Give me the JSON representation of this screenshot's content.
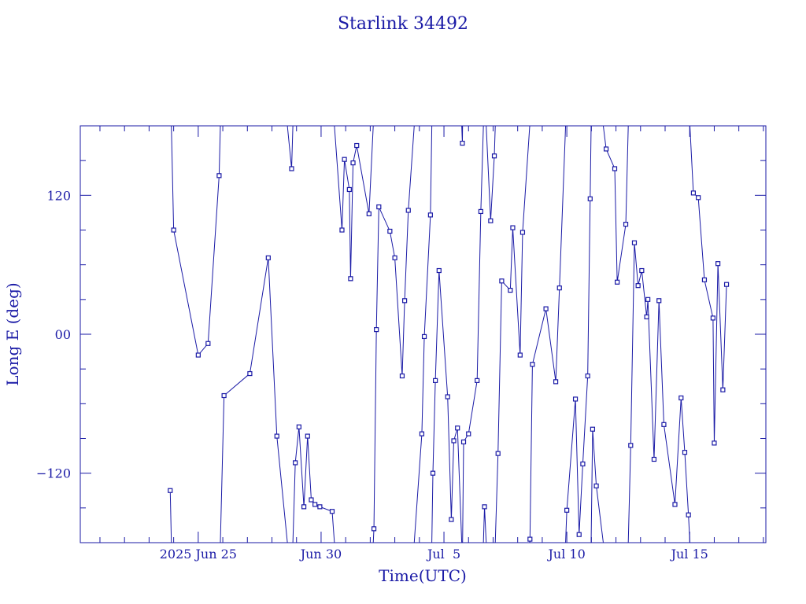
{
  "colors": {
    "ink": "#1a1aa6",
    "background": "#ffffff"
  },
  "chart_data": {
    "type": "scatter",
    "title": "Starlink 34492",
    "xlabel": "Time(UTC)",
    "ylabel": "Long E (deg)",
    "y_ticks": [
      {
        "value": 120,
        "label": "120"
      },
      {
        "value": 0,
        "label": "00"
      },
      {
        "value": -120,
        "label": "−120"
      }
    ],
    "ylim": [
      -180,
      180
    ],
    "x_ticks": [
      {
        "value": 25,
        "label": "2025 Jun 25"
      },
      {
        "value": 30,
        "label": "Jun 30"
      },
      {
        "value": 35,
        "label": "Jul  5"
      },
      {
        "value": 40,
        "label": "Jul 10"
      },
      {
        "value": 45,
        "label": "Jul 15"
      }
    ],
    "x_axis_origin": "days counted from 2025 Jun 0 (Jun 25 = 25, Jul 5 = 35)",
    "xlim": [
      20.2,
      48.1
    ],
    "series": [
      {
        "values": [
          [
            23.86,
            -135
          ],
          [
            24.0,
            90
          ],
          [
            25.0,
            -18
          ],
          [
            25.4,
            -8
          ],
          [
            25.85,
            137
          ],
          [
            26.05,
            -53
          ],
          [
            27.1,
            -34
          ],
          [
            27.85,
            66
          ],
          [
            28.2,
            -88
          ],
          [
            28.8,
            143
          ],
          [
            28.95,
            -111
          ],
          [
            29.1,
            -80
          ],
          [
            29.3,
            -149
          ],
          [
            29.45,
            -88
          ],
          [
            29.6,
            -143
          ],
          [
            29.75,
            -147
          ],
          [
            29.95,
            -149
          ],
          [
            30.45,
            -153
          ],
          [
            30.85,
            90
          ],
          [
            30.95,
            151
          ],
          [
            31.15,
            125
          ],
          [
            31.2,
            48
          ],
          [
            31.3,
            148
          ],
          [
            31.45,
            163
          ],
          [
            31.95,
            104
          ],
          [
            32.15,
            -168
          ],
          [
            32.25,
            4
          ],
          [
            32.35,
            110
          ],
          [
            32.8,
            89
          ],
          [
            33.0,
            66
          ],
          [
            33.3,
            -36
          ],
          [
            33.4,
            29
          ],
          [
            33.55,
            107
          ],
          [
            34.1,
            -86
          ],
          [
            34.2,
            -2
          ],
          [
            34.45,
            103
          ],
          [
            34.55,
            -120
          ],
          [
            34.65,
            -40
          ],
          [
            34.8,
            55
          ],
          [
            35.15,
            -54
          ],
          [
            35.3,
            -160
          ],
          [
            35.4,
            -92
          ],
          [
            35.55,
            -81
          ],
          [
            35.75,
            165
          ],
          [
            35.8,
            -93
          ],
          [
            36.0,
            -86
          ],
          [
            36.35,
            -40
          ],
          [
            36.5,
            106
          ],
          [
            36.65,
            -149
          ],
          [
            36.9,
            98
          ],
          [
            37.05,
            154
          ],
          [
            37.2,
            -103
          ],
          [
            37.35,
            46
          ],
          [
            37.7,
            38
          ],
          [
            37.8,
            92
          ],
          [
            38.1,
            -18
          ],
          [
            38.2,
            88
          ],
          [
            38.5,
            -177
          ],
          [
            38.6,
            -26
          ],
          [
            39.15,
            22
          ],
          [
            39.55,
            -41
          ],
          [
            39.7,
            40
          ],
          [
            40.0,
            -152
          ],
          [
            40.35,
            -56
          ],
          [
            40.5,
            -173
          ],
          [
            40.65,
            -112
          ],
          [
            40.85,
            -36
          ],
          [
            40.95,
            117
          ],
          [
            41.05,
            -82
          ],
          [
            41.2,
            -131
          ],
          [
            41.6,
            160
          ],
          [
            41.95,
            143
          ],
          [
            42.05,
            45
          ],
          [
            42.4,
            95
          ],
          [
            42.6,
            -96
          ],
          [
            42.75,
            79
          ],
          [
            42.9,
            42
          ],
          [
            43.05,
            55
          ],
          [
            43.25,
            15
          ],
          [
            43.3,
            30
          ],
          [
            43.55,
            -108
          ],
          [
            43.75,
            29
          ],
          [
            43.95,
            -78
          ],
          [
            44.4,
            -147
          ],
          [
            44.65,
            -55
          ],
          [
            44.8,
            -102
          ],
          [
            44.95,
            -156
          ],
          [
            45.15,
            122
          ],
          [
            45.35,
            118
          ],
          [
            45.6,
            47
          ],
          [
            45.95,
            14
          ],
          [
            46.0,
            -94
          ],
          [
            46.15,
            61
          ],
          [
            46.35,
            -48
          ],
          [
            46.5,
            43
          ]
        ]
      }
    ]
  }
}
